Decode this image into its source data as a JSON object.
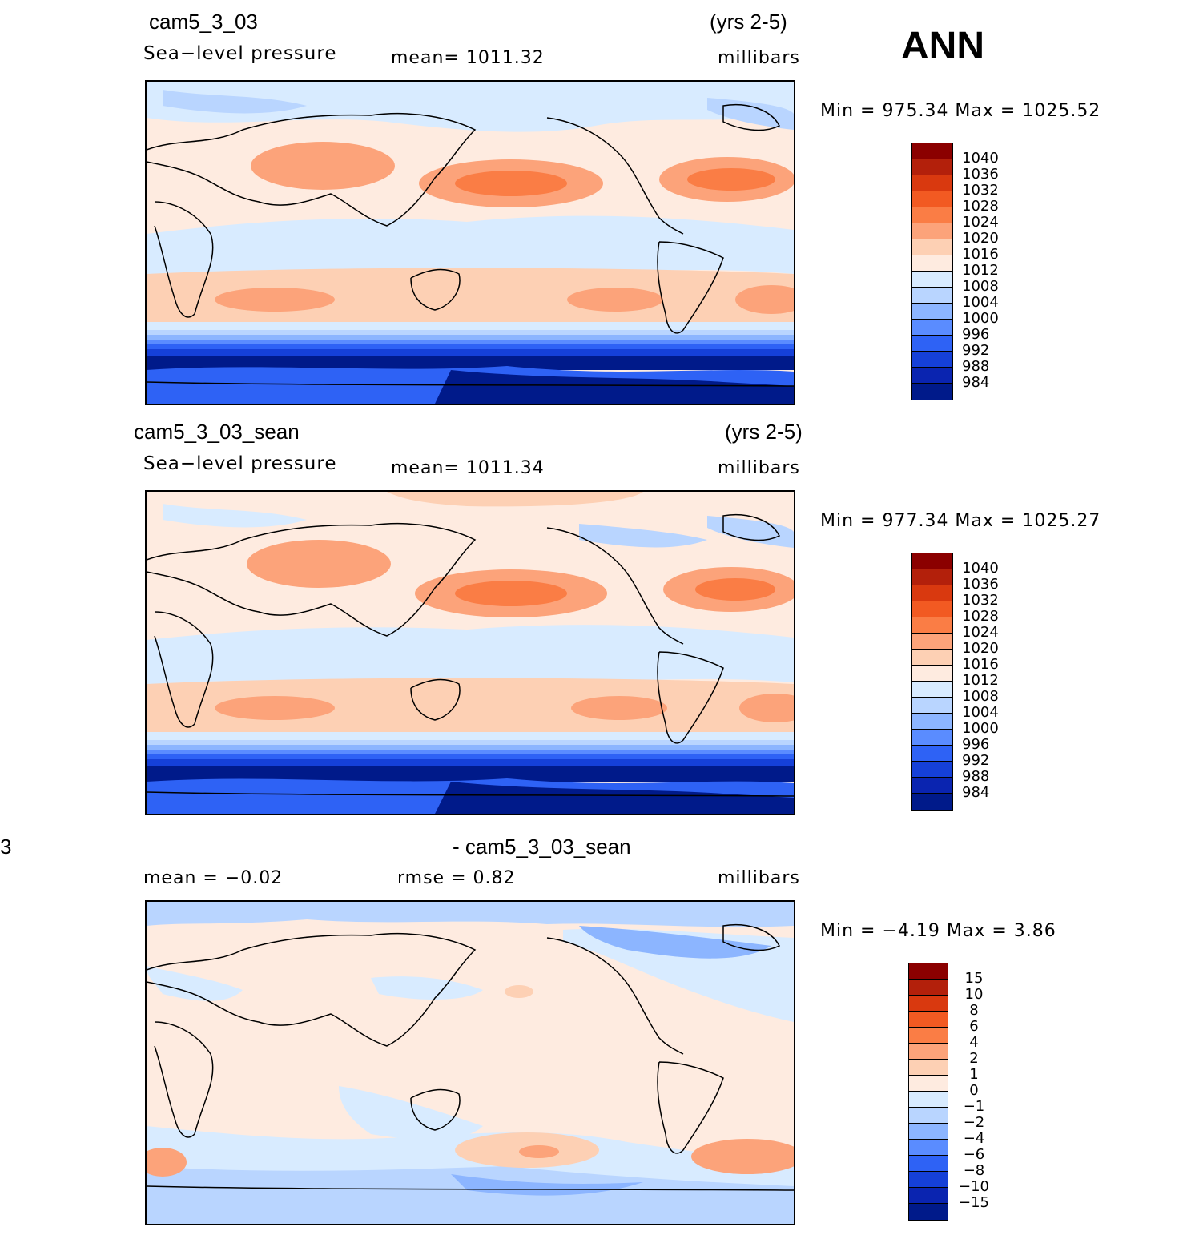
{
  "season": "ANN",
  "panels": [
    {
      "case": "cam5_3_03",
      "years": "(yrs 2-5)",
      "variable": "Sea−level pressure",
      "mean": "mean=  1011.32",
      "units": "millibars",
      "minmax": "Min  =  975.34  Max  =  1025.52",
      "levels": [
        "1040",
        "1036",
        "1032",
        "1028",
        "1024",
        "1020",
        "1016",
        "1012",
        "1008",
        "1004",
        "1000",
        "996",
        "992",
        "988",
        "984"
      ],
      "colors": [
        "#8b0000",
        "#b3200b",
        "#d9390f",
        "#f25a22",
        "#fa7d45",
        "#fca37a",
        "#fdd0b4",
        "#feebe0",
        "#d8ebff",
        "#b9d5ff",
        "#8cb5ff",
        "#5a8cff",
        "#2e62f5",
        "#1540d8",
        "#0a24b0",
        "#001a8a"
      ]
    },
    {
      "case": "cam5_3_03_sean",
      "years": "(yrs 2-5)",
      "variable": "Sea−level pressure",
      "mean": "mean=  1011.34",
      "units": "millibars",
      "minmax": "Min  =  977.34  Max  =  1025.27",
      "levels": [
        "1040",
        "1036",
        "1032",
        "1028",
        "1024",
        "1020",
        "1016",
        "1012",
        "1008",
        "1004",
        "1000",
        "996",
        "992",
        "988",
        "984"
      ],
      "colors": [
        "#8b0000",
        "#b3200b",
        "#d9390f",
        "#f25a22",
        "#fa7d45",
        "#fca37a",
        "#fdd0b4",
        "#feebe0",
        "#d8ebff",
        "#b9d5ff",
        "#8cb5ff",
        "#5a8cff",
        "#2e62f5",
        "#1540d8",
        "#0a24b0",
        "#001a8a"
      ]
    },
    {
      "left_fragment": "3",
      "case": "- cam5_3_03_sean",
      "mean": "mean  =    −0.02",
      "rmse": "rmse  =      0.82",
      "units": "millibars",
      "minmax": "Min  =    −4.19  Max  =      3.86",
      "levels": [
        "15",
        "10",
        "8",
        "6",
        "4",
        "2",
        "1",
        "0",
        "−1",
        "−2",
        "−4",
        "−6",
        "−8",
        "−10",
        "−15"
      ],
      "colors": [
        "#8b0000",
        "#b3200b",
        "#d9390f",
        "#f25a22",
        "#fa7d45",
        "#fca37a",
        "#fdd0b4",
        "#feebe0",
        "#d8ebff",
        "#b9d5ff",
        "#8cb5ff",
        "#5a8cff",
        "#2e62f5",
        "#1540d8",
        "#0a24b0",
        "#001a8a"
      ]
    }
  ]
}
